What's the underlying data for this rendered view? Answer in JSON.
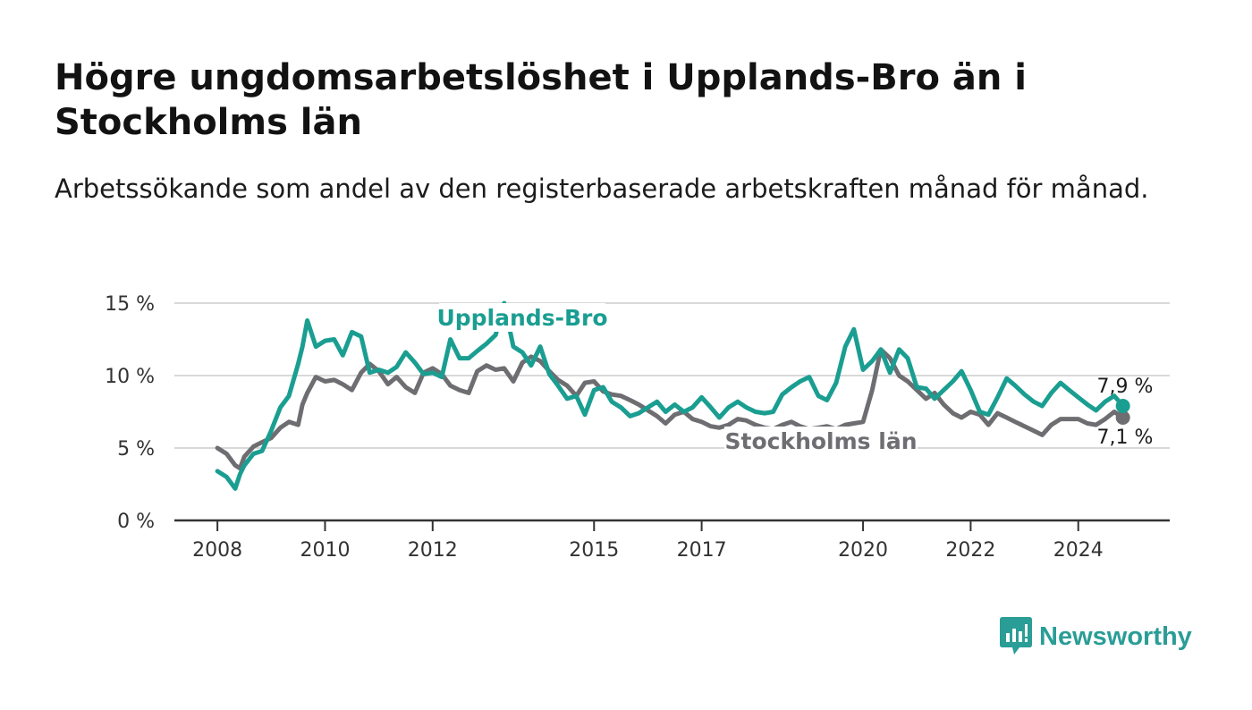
{
  "title": "Högre ungdomsarbetslöshet i Upplands-Bro än i Stockholms län",
  "subtitle": "Arbetssökande som andel av den registerbaserade arbetskraften månad för månad.",
  "logo": {
    "text": "Newsworthy",
    "icon": "bar-chart-speech-bubble-icon",
    "color": "#2a9d96"
  },
  "chart_data": {
    "type": "line",
    "y_ticks": [
      {
        "value": 0,
        "label": "0 %"
      },
      {
        "value": 5,
        "label": "5 %"
      },
      {
        "value": 10,
        "label": "10 %"
      },
      {
        "value": 15,
        "label": "15 %"
      }
    ],
    "x_ticks": [
      {
        "value": 2008,
        "label": "2008"
      },
      {
        "value": 2010,
        "label": "2010"
      },
      {
        "value": 2012,
        "label": "2012"
      },
      {
        "value": 2015,
        "label": "2015"
      },
      {
        "value": 2017,
        "label": "2017"
      },
      {
        "value": 2020,
        "label": "2020"
      },
      {
        "value": 2022,
        "label": "2022"
      },
      {
        "value": 2024,
        "label": "2024"
      }
    ],
    "ylim": [
      0,
      15
    ],
    "xlim": [
      2007.2,
      2025.7
    ],
    "grid": true,
    "series": [
      {
        "name": "Stockholms län",
        "color": "#6e6e72",
        "end_label": "7,1 %",
        "x": [
          2008.0,
          2008.17,
          2008.33,
          2008.42,
          2008.5,
          2008.67,
          2008.83,
          2009.0,
          2009.17,
          2009.33,
          2009.5,
          2009.58,
          2009.67,
          2009.83,
          2010.0,
          2010.17,
          2010.33,
          2010.5,
          2010.67,
          2010.83,
          2011.0,
          2011.17,
          2011.33,
          2011.5,
          2011.67,
          2011.83,
          2012.0,
          2012.17,
          2012.33,
          2012.5,
          2012.67,
          2012.83,
          2013.0,
          2013.17,
          2013.33,
          2013.5,
          2013.67,
          2013.83,
          2014.0,
          2014.17,
          2014.33,
          2014.5,
          2014.67,
          2014.83,
          2015.0,
          2015.17,
          2015.33,
          2015.5,
          2015.67,
          2015.83,
          2016.0,
          2016.17,
          2016.33,
          2016.5,
          2016.67,
          2016.83,
          2017.0,
          2017.17,
          2017.33,
          2017.5,
          2017.67,
          2017.83,
          2018.0,
          2018.17,
          2018.33,
          2018.5,
          2018.67,
          2018.83,
          2019.0,
          2019.17,
          2019.33,
          2019.5,
          2019.67,
          2019.83,
          2020.0,
          2020.17,
          2020.33,
          2020.5,
          2020.67,
          2020.83,
          2021.0,
          2021.17,
          2021.33,
          2021.5,
          2021.67,
          2021.83,
          2022.0,
          2022.17,
          2022.33,
          2022.5,
          2022.67,
          2022.83,
          2023.0,
          2023.17,
          2023.33,
          2023.5,
          2023.67,
          2023.83,
          2024.0,
          2024.17,
          2024.33,
          2024.5,
          2024.67,
          2024.83
        ],
        "y": [
          5.0,
          4.6,
          3.8,
          3.6,
          4.4,
          5.1,
          5.4,
          5.7,
          6.4,
          6.8,
          6.6,
          8.0,
          8.8,
          9.9,
          9.6,
          9.7,
          9.4,
          9.0,
          10.2,
          10.8,
          10.3,
          9.4,
          9.9,
          9.2,
          8.8,
          10.2,
          10.5,
          10.1,
          9.3,
          9.0,
          8.8,
          10.3,
          10.7,
          10.4,
          10.5,
          9.6,
          10.9,
          11.3,
          11.0,
          10.3,
          9.7,
          9.3,
          8.6,
          9.5,
          9.6,
          8.9,
          8.7,
          8.6,
          8.3,
          8.0,
          7.6,
          7.2,
          6.7,
          7.3,
          7.5,
          7.0,
          6.8,
          6.5,
          6.4,
          6.6,
          7.0,
          6.9,
          6.6,
          6.4,
          6.3,
          6.6,
          6.8,
          6.5,
          6.3,
          6.4,
          6.5,
          6.3,
          6.6,
          6.7,
          6.8,
          9.0,
          11.8,
          11.2,
          10.0,
          9.6,
          9.0,
          8.4,
          8.8,
          8.0,
          7.4,
          7.1,
          7.5,
          7.3,
          6.6,
          7.4,
          7.1,
          6.8,
          6.5,
          6.2,
          5.9,
          6.6,
          7.0,
          7.0,
          7.0,
          6.7,
          6.6,
          7.0,
          7.5,
          7.1
        ]
      },
      {
        "name": "Upplands-Bro",
        "color": "#1a9e91",
        "end_label": "7,9 %",
        "x": [
          2008.0,
          2008.17,
          2008.33,
          2008.42,
          2008.5,
          2008.67,
          2008.83,
          2009.0,
          2009.17,
          2009.33,
          2009.5,
          2009.58,
          2009.67,
          2009.83,
          2010.0,
          2010.17,
          2010.33,
          2010.5,
          2010.67,
          2010.83,
          2011.0,
          2011.17,
          2011.33,
          2011.5,
          2011.67,
          2011.83,
          2012.0,
          2012.17,
          2012.33,
          2012.5,
          2012.67,
          2012.83,
          2013.0,
          2013.17,
          2013.33,
          2013.5,
          2013.67,
          2013.83,
          2014.0,
          2014.17,
          2014.33,
          2014.5,
          2014.67,
          2014.83,
          2015.0,
          2015.17,
          2015.33,
          2015.5,
          2015.67,
          2015.83,
          2016.0,
          2016.17,
          2016.33,
          2016.5,
          2016.67,
          2016.83,
          2017.0,
          2017.17,
          2017.33,
          2017.5,
          2017.67,
          2017.83,
          2018.0,
          2018.17,
          2018.33,
          2018.5,
          2018.67,
          2018.83,
          2019.0,
          2019.17,
          2019.33,
          2019.5,
          2019.67,
          2019.83,
          2020.0,
          2020.17,
          2020.33,
          2020.5,
          2020.67,
          2020.83,
          2021.0,
          2021.17,
          2021.33,
          2021.5,
          2021.67,
          2021.83,
          2022.0,
          2022.17,
          2022.33,
          2022.5,
          2022.67,
          2022.83,
          2023.0,
          2023.17,
          2023.33,
          2023.5,
          2023.67,
          2023.83,
          2024.0,
          2024.17,
          2024.33,
          2024.5,
          2024.67,
          2024.83
        ],
        "y": [
          3.4,
          3.0,
          2.2,
          3.2,
          3.8,
          4.6,
          4.8,
          6.2,
          7.8,
          8.6,
          10.8,
          12.0,
          13.8,
          12.0,
          12.4,
          12.5,
          11.4,
          13.0,
          12.7,
          10.2,
          10.4,
          10.2,
          10.6,
          11.6,
          10.9,
          10.1,
          10.2,
          9.9,
          12.5,
          11.2,
          11.2,
          11.7,
          12.2,
          12.8,
          15.0,
          12.0,
          11.6,
          10.7,
          12.0,
          10.1,
          9.3,
          8.4,
          8.6,
          7.3,
          9.0,
          9.2,
          8.2,
          7.8,
          7.2,
          7.4,
          7.8,
          8.2,
          7.5,
          8.0,
          7.5,
          7.8,
          8.5,
          7.8,
          7.1,
          7.8,
          8.2,
          7.8,
          7.5,
          7.4,
          7.5,
          8.7,
          9.2,
          9.6,
          9.9,
          8.6,
          8.3,
          9.5,
          12.0,
          13.2,
          10.4,
          11.0,
          11.8,
          10.2,
          11.8,
          11.2,
          9.2,
          9.1,
          8.4,
          9.0,
          9.6,
          10.3,
          9.0,
          7.5,
          7.3,
          8.5,
          9.8,
          9.3,
          8.7,
          8.2,
          7.9,
          8.8,
          9.5,
          9.0,
          8.5,
          8.0,
          7.6,
          8.2,
          8.6,
          7.9
        ]
      }
    ]
  }
}
